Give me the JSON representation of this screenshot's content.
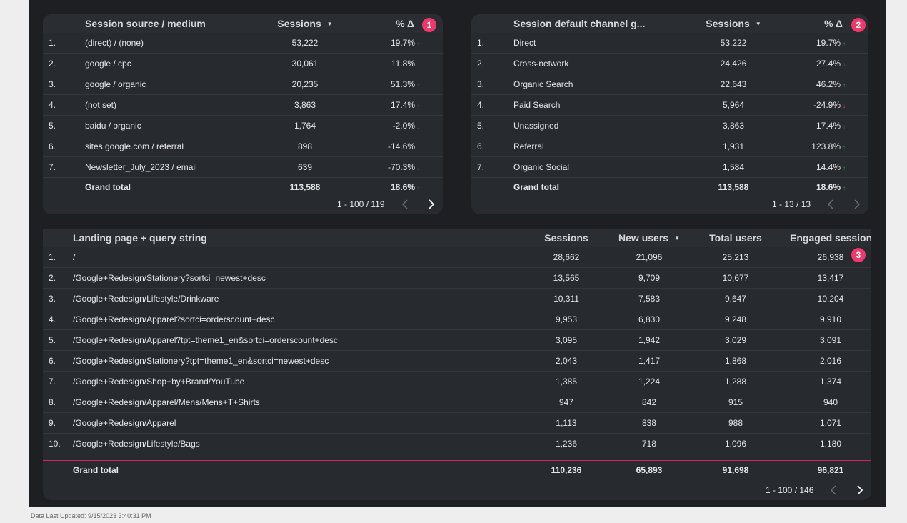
{
  "footer": "Data Last Updated: 9/15/2023 3:40:31 PM",
  "table1": {
    "badge": "1",
    "columns": [
      "Session source / medium",
      "Sessions",
      "% Δ"
    ],
    "rows": [
      {
        "idx": "1.",
        "name": "(direct) / (none)",
        "sessions": "53,222",
        "delta": "19.7%",
        "trend": "up"
      },
      {
        "idx": "2.",
        "name": "google / cpc",
        "sessions": "30,061",
        "delta": "11.8%",
        "trend": "up"
      },
      {
        "idx": "3.",
        "name": "google / organic",
        "sessions": "20,235",
        "delta": "51.3%",
        "trend": "up"
      },
      {
        "idx": "4.",
        "name": "(not set)",
        "sessions": "3,863",
        "delta": "17.4%",
        "trend": "up"
      },
      {
        "idx": "5.",
        "name": "baidu / organic",
        "sessions": "1,764",
        "delta": "-2.0%",
        "trend": "down"
      },
      {
        "idx": "6.",
        "name": "sites.google.com / referral",
        "sessions": "898",
        "delta": "-14.6%",
        "trend": "down"
      },
      {
        "idx": "7.",
        "name": "Newsletter_July_2023 / email",
        "sessions": "639",
        "delta": "-70.3%",
        "trend": "down"
      }
    ],
    "total": {
      "label": "Grand total",
      "sessions": "113,588",
      "delta": "18.6%",
      "trend": "up"
    },
    "pager": "1 - 100 / 119"
  },
  "table2": {
    "badge": "2",
    "columns": [
      "Session default channel g...",
      "Sessions",
      "% Δ"
    ],
    "rows": [
      {
        "idx": "1.",
        "name": "Direct",
        "sessions": "53,222",
        "delta": "19.7%",
        "trend": "up"
      },
      {
        "idx": "2.",
        "name": "Cross-network",
        "sessions": "24,426",
        "delta": "27.4%",
        "trend": "up"
      },
      {
        "idx": "3.",
        "name": "Organic Search",
        "sessions": "22,643",
        "delta": "46.2%",
        "trend": "up"
      },
      {
        "idx": "4.",
        "name": "Paid Search",
        "sessions": "5,964",
        "delta": "-24.9%",
        "trend": "down"
      },
      {
        "idx": "5.",
        "name": "Unassigned",
        "sessions": "3,863",
        "delta": "17.4%",
        "trend": "up"
      },
      {
        "idx": "6.",
        "name": "Referral",
        "sessions": "1,931",
        "delta": "123.8%",
        "trend": "up"
      },
      {
        "idx": "7.",
        "name": "Organic Social",
        "sessions": "1,584",
        "delta": "14.4%",
        "trend": "up"
      }
    ],
    "total": {
      "label": "Grand total",
      "sessions": "113,588",
      "delta": "18.6%",
      "trend": "up"
    },
    "pager": "1 - 13 / 13"
  },
  "table3": {
    "badge": "3",
    "columns": [
      "Landing page + query string",
      "Sessions",
      "New users",
      "Total users",
      "Engaged sessions"
    ],
    "rows": [
      {
        "idx": "1.",
        "name": "/",
        "sessions": "28,662",
        "new_users": "21,096",
        "total_users": "25,213",
        "engaged": "26,938"
      },
      {
        "idx": "2.",
        "name": "/Google+Redesign/Stationery?sortci=newest+desc",
        "sessions": "13,565",
        "new_users": "9,709",
        "total_users": "10,677",
        "engaged": "13,417"
      },
      {
        "idx": "3.",
        "name": "/Google+Redesign/Lifestyle/Drinkware",
        "sessions": "10,311",
        "new_users": "7,583",
        "total_users": "9,647",
        "engaged": "10,204"
      },
      {
        "idx": "4.",
        "name": "/Google+Redesign/Apparel?sortci=orderscount+desc",
        "sessions": "9,953",
        "new_users": "6,830",
        "total_users": "9,248",
        "engaged": "9,910"
      },
      {
        "idx": "5.",
        "name": "/Google+Redesign/Apparel?tpt=theme1_en&sortci=orderscount+desc",
        "sessions": "3,095",
        "new_users": "1,942",
        "total_users": "3,029",
        "engaged": "3,091"
      },
      {
        "idx": "6.",
        "name": "/Google+Redesign/Stationery?tpt=theme1_en&sortci=newest+desc",
        "sessions": "2,043",
        "new_users": "1,417",
        "total_users": "1,868",
        "engaged": "2,016"
      },
      {
        "idx": "7.",
        "name": "/Google+Redesign/Shop+by+Brand/YouTube",
        "sessions": "1,385",
        "new_users": "1,224",
        "total_users": "1,288",
        "engaged": "1,374"
      },
      {
        "idx": "8.",
        "name": "/Google+Redesign/Apparel/Mens/Mens+T+Shirts",
        "sessions": "947",
        "new_users": "842",
        "total_users": "915",
        "engaged": "940"
      },
      {
        "idx": "9.",
        "name": "/Google+Redesign/Apparel",
        "sessions": "1,113",
        "new_users": "838",
        "total_users": "988",
        "engaged": "1,071"
      },
      {
        "idx": "10.",
        "name": "/Google+Redesign/Lifestyle/Bags",
        "sessions": "1,236",
        "new_users": "718",
        "total_users": "1,096",
        "engaged": "1,180"
      }
    ],
    "total": {
      "label": "Grand total",
      "sessions": "110,236",
      "new_users": "65,893",
      "total_users": "91,698",
      "engaged": "96,821"
    },
    "pager": "1 - 100 / 146"
  },
  "colors": {
    "up": "#2ea043",
    "down": "#e5484d",
    "badge": "#f0386b",
    "accent_line": "#d0245e"
  }
}
